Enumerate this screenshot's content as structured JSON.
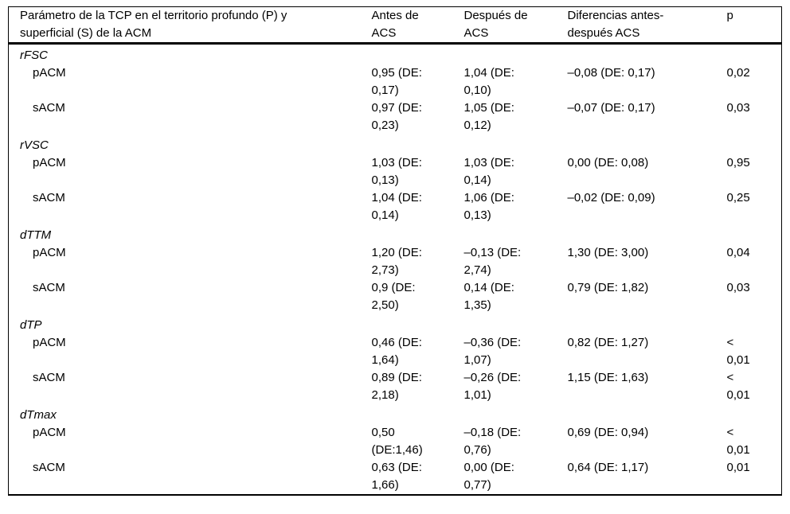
{
  "table": {
    "columns": [
      {
        "label": "Parámetro de la TCP en el territorio profundo (P) y\nsuperficial (S) de la ACM"
      },
      {
        "label": "Antes de\nACS"
      },
      {
        "label": "Después de\nACS"
      },
      {
        "label": "Diferencias antes-\ndespués ACS"
      },
      {
        "label": "p"
      }
    ],
    "sections": [
      {
        "label": "rFSC",
        "rows": [
          {
            "param": "pACM",
            "antes": "0,95 (DE:\n0,17)",
            "despues": "1,04 (DE:\n0,10)",
            "diff": "–0,08 (DE: 0,17)",
            "p": "0,02"
          },
          {
            "param": "sACM",
            "antes": "0,97 (DE:\n0,23)",
            "despues": "1,05 (DE:\n0,12)",
            "diff": "–0,07 (DE: 0,17)",
            "p": "0,03"
          }
        ]
      },
      {
        "label": "rVSC",
        "rows": [
          {
            "param": "pACM",
            "antes": "1,03 (DE:\n0,13)",
            "despues": "1,03 (DE:\n0,14)",
            "diff": "0,00 (DE: 0,08)",
            "p": "0,95"
          },
          {
            "param": "sACM",
            "antes": "1,04 (DE:\n0,14)",
            "despues": "1,06 (DE:\n0,13)",
            "diff": "–0,02 (DE: 0,09)",
            "p": "0,25"
          }
        ]
      },
      {
        "label": "dTTM",
        "rows": [
          {
            "param": "pACM",
            "antes": "1,20 (DE:\n2,73)",
            "despues": "–0,13 (DE:\n2,74)",
            "diff": "1,30 (DE: 3,00)",
            "p": "0,04"
          },
          {
            "param": "sACM",
            "antes": "0,9 (DE:\n2,50)",
            "despues": "0,14 (DE:\n1,35)",
            "diff": "0,79 (DE: 1,82)",
            "p": "0,03"
          }
        ]
      },
      {
        "label": "dTP",
        "rows": [
          {
            "param": "pACM",
            "antes": "0,46 (DE:\n1,64)",
            "despues": "–0,36 (DE:\n1,07)",
            "diff": "0,82 (DE: 1,27)",
            "p": "<\n0,01"
          },
          {
            "param": "sACM",
            "antes": "0,89 (DE:\n2,18)",
            "despues": "–0,26 (DE:\n1,01)",
            "diff": "1,15 (DE: 1,63)",
            "p": "<\n0,01"
          }
        ]
      },
      {
        "label": "dTmax",
        "rows": [
          {
            "param": "pACM",
            "antes": "0,50\n(DE:1,46)",
            "despues": "–0,18 (DE:\n0,76)",
            "diff": "0,69 (DE: 0,94)",
            "p": "<\n0,01"
          },
          {
            "param": "sACM",
            "antes": "0,63 (DE:\n1,66)",
            "despues": "0,00 (DE:\n0,77)",
            "diff": "0,64 (DE: 1,17)",
            "p": "0,01"
          }
        ]
      }
    ]
  }
}
